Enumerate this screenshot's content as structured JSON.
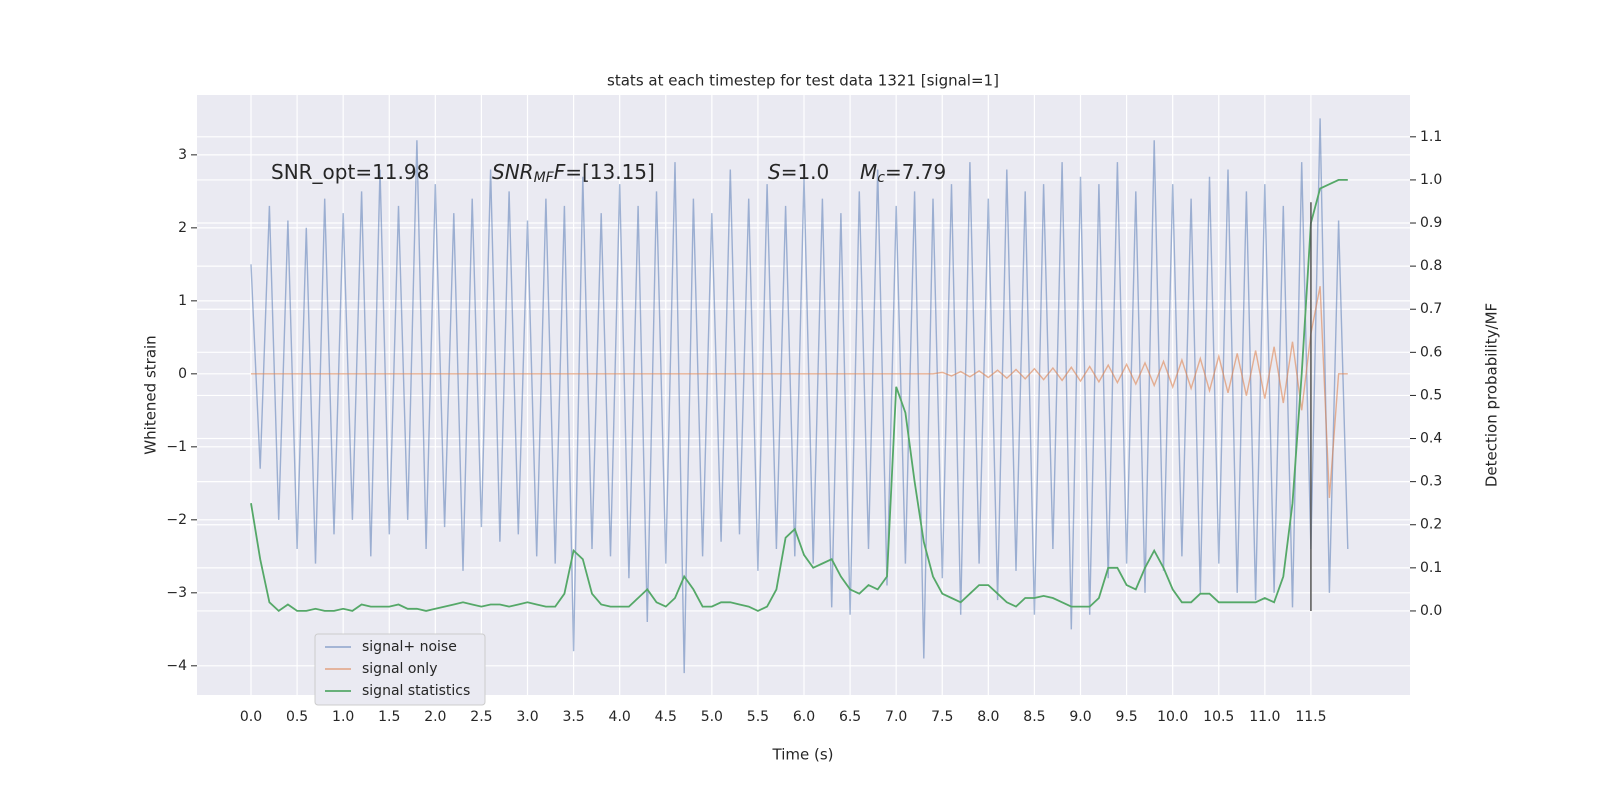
{
  "chart_data": {
    "type": "line",
    "title": "stats at each timestep for test data 1321 [signal=1]",
    "xlabel": "Time (s)",
    "ylabel": "Whitened strain",
    "y2label": "Detection probability/MF",
    "x": [
      0.0,
      0.1,
      0.2,
      0.3,
      0.4,
      0.5,
      0.6,
      0.7,
      0.8,
      0.9,
      1.0,
      1.1,
      1.2,
      1.3,
      1.4,
      1.5,
      1.6,
      1.7,
      1.8,
      1.9,
      2.0,
      2.1,
      2.2,
      2.3,
      2.4,
      2.5,
      2.6,
      2.7,
      2.8,
      2.9,
      3.0,
      3.1,
      3.2,
      3.3,
      3.4,
      3.5,
      3.6,
      3.7,
      3.8,
      3.9,
      4.0,
      4.1,
      4.2,
      4.3,
      4.4,
      4.5,
      4.6,
      4.7,
      4.8,
      4.9,
      5.0,
      5.1,
      5.2,
      5.3,
      5.4,
      5.5,
      5.6,
      5.7,
      5.8,
      5.9,
      6.0,
      6.1,
      6.2,
      6.3,
      6.4,
      6.5,
      6.6,
      6.7,
      6.8,
      6.9,
      7.0,
      7.1,
      7.2,
      7.3,
      7.4,
      7.5,
      7.6,
      7.7,
      7.8,
      7.9,
      8.0,
      8.1,
      8.2,
      8.3,
      8.4,
      8.5,
      8.6,
      8.7,
      8.8,
      8.9,
      9.0,
      9.1,
      9.2,
      9.3,
      9.4,
      9.5,
      9.6,
      9.7,
      9.8,
      9.9,
      10.0,
      10.1,
      10.2,
      10.3,
      10.4,
      10.5,
      10.6,
      10.7,
      10.8,
      10.9,
      11.0,
      11.1,
      11.2,
      11.3,
      11.4,
      11.5,
      11.6,
      11.7,
      11.8,
      11.9
    ],
    "series": [
      {
        "name": "signal+ noise",
        "color": "#4c72b0",
        "opacity": 0.5,
        "values": [
          1.5,
          -1.3,
          2.3,
          -2.0,
          2.1,
          -2.4,
          2.0,
          -2.6,
          2.4,
          -2.2,
          2.2,
          -2.0,
          2.5,
          -2.5,
          2.8,
          -2.2,
          2.3,
          -2.0,
          3.2,
          -2.4,
          2.6,
          -2.1,
          2.2,
          -2.7,
          2.4,
          -2.1,
          2.8,
          -2.3,
          2.5,
          -2.2,
          2.1,
          -2.5,
          2.4,
          -2.6,
          2.3,
          -3.8,
          2.7,
          -2.4,
          2.2,
          -2.5,
          2.6,
          -2.8,
          2.3,
          -3.4,
          2.5,
          -2.6,
          2.9,
          -4.1,
          2.4,
          -2.5,
          2.2,
          -2.3,
          2.8,
          -2.2,
          2.4,
          -2.7,
          2.6,
          -2.4,
          2.3,
          -2.5,
          2.7,
          -2.6,
          2.4,
          -3.2,
          2.2,
          -3.3,
          2.5,
          -2.4,
          2.8,
          -2.9,
          2.3,
          -2.6,
          2.5,
          -3.9,
          2.4,
          -2.8,
          2.6,
          -3.3,
          2.9,
          -2.6,
          2.4,
          -3.1,
          2.8,
          -2.7,
          2.5,
          -3.3,
          2.6,
          -2.4,
          2.9,
          -3.5,
          2.7,
          -3.3,
          2.6,
          -2.8,
          2.9,
          -2.6,
          2.5,
          -3.0,
          3.2,
          -2.7,
          2.6,
          -2.5,
          2.4,
          -3.0,
          2.7,
          -2.6,
          2.8,
          -3.0,
          2.5,
          -3.1,
          2.6,
          -3.0,
          2.3,
          -3.2,
          2.9,
          -2.4,
          3.5,
          -3.0,
          2.1,
          -2.4
        ]
      },
      {
        "name": "signal only",
        "color": "#dd8452",
        "opacity": 0.6,
        "values": [
          0,
          0,
          0,
          0,
          0,
          0,
          0,
          0,
          0,
          0,
          0,
          0,
          0,
          0,
          0,
          0,
          0,
          0,
          0,
          0,
          0,
          0,
          0,
          0,
          0,
          0,
          0,
          0,
          0,
          0,
          0,
          0,
          0,
          0,
          0,
          0,
          0,
          0,
          0,
          0,
          0,
          0,
          0,
          0,
          0,
          0,
          0,
          0,
          0,
          0,
          0,
          0,
          0,
          0,
          0,
          0,
          0,
          0,
          0,
          0,
          0,
          0,
          0,
          0,
          0,
          0,
          0,
          0,
          0,
          0,
          0,
          0,
          0,
          0,
          0,
          0.02,
          -0.03,
          0.03,
          -0.04,
          0.04,
          -0.05,
          0.05,
          -0.06,
          0.06,
          -0.07,
          0.07,
          -0.08,
          0.08,
          -0.09,
          0.09,
          -0.1,
          0.1,
          -0.11,
          0.12,
          -0.12,
          0.13,
          -0.14,
          0.15,
          -0.16,
          0.17,
          -0.18,
          0.19,
          -0.2,
          0.21,
          -0.23,
          0.24,
          -0.26,
          0.28,
          -0.3,
          0.32,
          -0.34,
          0.37,
          -0.4,
          0.44,
          -0.5,
          0.55,
          1.2,
          -1.7,
          0,
          0
        ]
      },
      {
        "name": "signal statistics",
        "color": "#55a868",
        "opacity": 1,
        "axis": "y2",
        "values": [
          0.25,
          0.12,
          0.02,
          0.0,
          0.015,
          0.0,
          0.0,
          0.005,
          0.0,
          0.0,
          0.005,
          0.0,
          0.015,
          0.01,
          0.01,
          0.01,
          0.015,
          0.005,
          0.005,
          0.0,
          0.005,
          0.01,
          0.015,
          0.02,
          0.015,
          0.01,
          0.015,
          0.015,
          0.01,
          0.015,
          0.02,
          0.015,
          0.01,
          0.01,
          0.04,
          0.14,
          0.12,
          0.04,
          0.015,
          0.01,
          0.01,
          0.01,
          0.03,
          0.05,
          0.02,
          0.01,
          0.03,
          0.08,
          0.05,
          0.01,
          0.01,
          0.02,
          0.02,
          0.015,
          0.01,
          0.0,
          0.01,
          0.05,
          0.17,
          0.19,
          0.13,
          0.1,
          0.11,
          0.12,
          0.08,
          0.05,
          0.04,
          0.06,
          0.05,
          0.08,
          0.52,
          0.46,
          0.3,
          0.16,
          0.08,
          0.04,
          0.03,
          0.02,
          0.04,
          0.06,
          0.06,
          0.04,
          0.02,
          0.01,
          0.03,
          0.03,
          0.035,
          0.03,
          0.02,
          0.01,
          0.01,
          0.01,
          0.03,
          0.1,
          0.1,
          0.06,
          0.05,
          0.1,
          0.14,
          0.1,
          0.05,
          0.02,
          0.02,
          0.04,
          0.04,
          0.02,
          0.02,
          0.02,
          0.02,
          0.02,
          0.03,
          0.02,
          0.08,
          0.25,
          0.55,
          0.9,
          0.98,
          0.99,
          1.0,
          1.0
        ]
      }
    ],
    "vertical_line": {
      "x": 11.5,
      "y": [
        -3.25,
        2.35
      ],
      "color": "#555555"
    },
    "annotations": [
      {
        "parts": [
          {
            "text": "SNR_opt=11.98",
            "style": "normal"
          }
        ]
      },
      {
        "parts": [
          {
            "text": "SNR",
            "style": "italic"
          },
          {
            "text": "MF",
            "style": "sub"
          },
          {
            "text": "F",
            "style": "italic"
          },
          {
            "text": "=[13.15]",
            "style": "normal"
          }
        ]
      },
      {
        "parts": [
          {
            "text": "S",
            "style": "italic"
          },
          {
            "text": "=1.0",
            "style": "normal"
          }
        ]
      },
      {
        "parts": [
          {
            "text": "M",
            "style": "italic"
          },
          {
            "text": "c",
            "style": "sub"
          },
          {
            "text": "=7.79",
            "style": "normal"
          }
        ]
      }
    ],
    "xlim": [
      -0.586,
      12.575
    ],
    "xticks": [
      {
        "value": 0,
        "label": "0.0"
      },
      {
        "value": 0.5,
        "label": "0.5"
      },
      {
        "value": 1,
        "label": "1.0"
      },
      {
        "value": 1.5,
        "label": "1.5"
      },
      {
        "value": 2,
        "label": "2.0"
      },
      {
        "value": 2.5,
        "label": "2.5"
      },
      {
        "value": 3,
        "label": "3.0"
      },
      {
        "value": 3.5,
        "label": "3.5"
      },
      {
        "value": 4,
        "label": "4.0"
      },
      {
        "value": 4.5,
        "label": "4.5"
      },
      {
        "value": 5,
        "label": "5.0"
      },
      {
        "value": 5.5,
        "label": "5.5"
      },
      {
        "value": 6,
        "label": "6.0"
      },
      {
        "value": 6.5,
        "label": "6.5"
      },
      {
        "value": 7,
        "label": "7.0"
      },
      {
        "value": 7.5,
        "label": "7.5"
      },
      {
        "value": 8,
        "label": "8.0"
      },
      {
        "value": 8.5,
        "label": "8.5"
      },
      {
        "value": 9,
        "label": "9.0"
      },
      {
        "value": 9.5,
        "label": "9.5"
      },
      {
        "value": 10,
        "label": "10.0"
      },
      {
        "value": 10.5,
        "label": "10.5"
      },
      {
        "value": 11,
        "label": "11.0"
      },
      {
        "value": 11.5,
        "label": "11.5"
      }
    ],
    "ylim": [
      -4.4,
      3.82
    ],
    "yticks": [
      {
        "value": -4,
        "label": "−4"
      },
      {
        "value": -3,
        "label": "−3"
      },
      {
        "value": -2,
        "label": "−2"
      },
      {
        "value": -1,
        "label": "−1"
      },
      0,
      1,
      2,
      3
    ],
    "y2lim": [
      -0.195,
      1.197
    ],
    "y2ticks": [
      {
        "value": 0,
        "label": "0.0"
      },
      {
        "value": 0.1,
        "label": "0.1"
      },
      {
        "value": 0.2,
        "label": "0.2"
      },
      {
        "value": 0.3,
        "label": "0.3"
      },
      {
        "value": 0.4,
        "label": "0.4"
      },
      {
        "value": 0.5,
        "label": "0.5"
      },
      {
        "value": 0.6,
        "label": "0.6"
      },
      {
        "value": 0.7,
        "label": "0.7"
      },
      {
        "value": 0.8,
        "label": "0.8"
      },
      {
        "value": 0.9,
        "label": "0.9"
      },
      {
        "value": 1,
        "label": "1.0"
      },
      {
        "value": 1.1,
        "label": "1.1"
      }
    ],
    "grid": true,
    "legend": "lower left"
  }
}
